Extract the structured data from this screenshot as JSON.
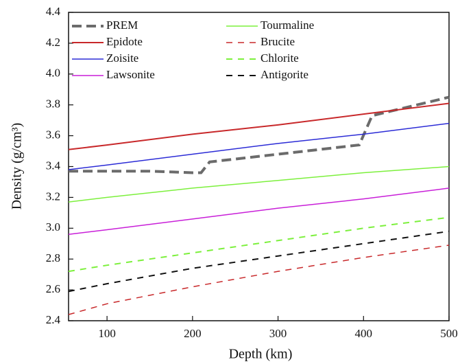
{
  "chart_data": {
    "type": "line",
    "xlabel": "Depth (km)",
    "ylabel": "Density (g/cm³)",
    "xlim": [
      55,
      500
    ],
    "ylim": [
      2.4,
      4.4
    ],
    "xticks": [
      100,
      200,
      300,
      400,
      500
    ],
    "yticks": [
      2.4,
      2.6,
      2.8,
      {
        "value": 3.0,
        "label": "3.0"
      },
      3.2,
      3.4,
      3.6,
      3.8,
      {
        "value": 4.0,
        "label": "4.0"
      },
      4.2,
      4.4
    ],
    "grid": false,
    "series": [
      {
        "name": "PREM",
        "color": "#6b6b6b",
        "style": "dashed",
        "width": 4,
        "x": [
          55,
          100,
          150,
          200,
          210,
          220,
          300,
          395,
          410,
          500
        ],
        "values": [
          3.37,
          3.37,
          3.37,
          3.36,
          3.36,
          3.43,
          3.48,
          3.54,
          3.73,
          3.85
        ]
      },
      {
        "name": "Epidote",
        "color": "#c8282a",
        "style": "solid",
        "width": 2,
        "x": [
          55,
          100,
          200,
          300,
          400,
          500
        ],
        "values": [
          3.51,
          3.54,
          3.61,
          3.67,
          3.74,
          3.81
        ]
      },
      {
        "name": "Zoisite",
        "color": "#2b2bd6",
        "style": "solid",
        "width": 1.5,
        "x": [
          55,
          100,
          200,
          300,
          400,
          500
        ],
        "values": [
          3.38,
          3.41,
          3.48,
          3.55,
          3.61,
          3.68
        ]
      },
      {
        "name": "Lawsonite",
        "color": "#c81ed8",
        "style": "solid",
        "width": 1.5,
        "x": [
          55,
          100,
          200,
          300,
          400,
          500
        ],
        "values": [
          2.96,
          2.99,
          3.06,
          3.13,
          3.19,
          3.26
        ]
      },
      {
        "name": "Tourmaline",
        "color": "#7cf03c",
        "style": "solid",
        "width": 1.5,
        "x": [
          55,
          100,
          200,
          300,
          400,
          500
        ],
        "values": [
          3.17,
          3.2,
          3.26,
          3.31,
          3.36,
          3.4
        ]
      },
      {
        "name": "Brucite",
        "color": "#c8282a",
        "style": "dashed",
        "width": 1.5,
        "x": [
          55,
          100,
          200,
          300,
          400,
          500
        ],
        "values": [
          2.44,
          2.51,
          2.62,
          2.72,
          2.81,
          2.89
        ]
      },
      {
        "name": "Chlorite",
        "color": "#7cf03c",
        "style": "dashed",
        "width": 2,
        "x": [
          55,
          100,
          200,
          300,
          400,
          500
        ],
        "values": [
          2.72,
          2.76,
          2.84,
          2.92,
          3.0,
          3.07
        ]
      },
      {
        "name": "Antigorite",
        "color": "#111111",
        "style": "dashed",
        "width": 2,
        "x": [
          55,
          100,
          200,
          300,
          400,
          500
        ],
        "values": [
          2.59,
          2.64,
          2.74,
          2.82,
          2.9,
          2.98
        ]
      }
    ]
  }
}
